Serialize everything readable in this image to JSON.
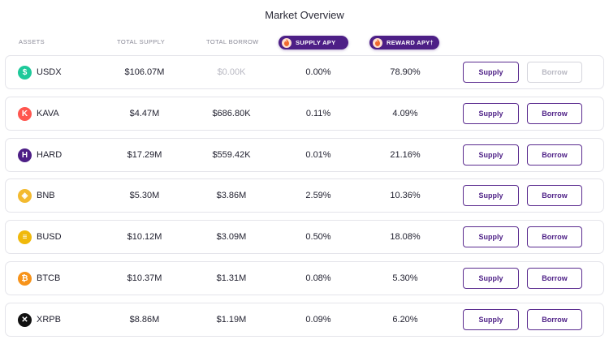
{
  "page": {
    "title": "Market Overview"
  },
  "headers": {
    "assets": "ASSETS",
    "total_supply": "TOTAL SUPPLY",
    "total_borrow": "TOTAL BORROW",
    "supply_apy": "SUPPLY APY",
    "reward_apy": "REWARD APY†"
  },
  "colors": {
    "accent": "#4d1f86",
    "pill_icon": "flame-icon"
  },
  "rows": [
    {
      "symbol": "USDX",
      "icon": "usdx-icon",
      "icon_color": "#1ec99a",
      "glyph": "$",
      "total_supply": "$106.07M",
      "total_borrow": "$0.00K",
      "borrow_muted": true,
      "supply_apy": "0.00%",
      "reward_apy": "78.90%",
      "supply_label": "Supply",
      "borrow_label": "Borrow",
      "borrow_disabled": true
    },
    {
      "symbol": "KAVA",
      "icon": "kava-icon",
      "icon_color": "#ff564f",
      "glyph": "K",
      "total_supply": "$4.47M",
      "total_borrow": "$686.80K",
      "borrow_muted": false,
      "supply_apy": "0.11%",
      "reward_apy": "4.09%",
      "supply_label": "Supply",
      "borrow_label": "Borrow",
      "borrow_disabled": false
    },
    {
      "symbol": "HARD",
      "icon": "hard-icon",
      "icon_color": "#4d1f86",
      "glyph": "H",
      "total_supply": "$17.29M",
      "total_borrow": "$559.42K",
      "borrow_muted": false,
      "supply_apy": "0.01%",
      "reward_apy": "21.16%",
      "supply_label": "Supply",
      "borrow_label": "Borrow",
      "borrow_disabled": false
    },
    {
      "symbol": "BNB",
      "icon": "bnb-icon",
      "icon_color": "#f3ba2f",
      "glyph": "◈",
      "total_supply": "$5.30M",
      "total_borrow": "$3.86M",
      "borrow_muted": false,
      "supply_apy": "2.59%",
      "reward_apy": "10.36%",
      "supply_label": "Supply",
      "borrow_label": "Borrow",
      "borrow_disabled": false
    },
    {
      "symbol": "BUSD",
      "icon": "busd-icon",
      "icon_color": "#f0b90b",
      "glyph": "≡",
      "total_supply": "$10.12M",
      "total_borrow": "$3.09M",
      "borrow_muted": false,
      "supply_apy": "0.50%",
      "reward_apy": "18.08%",
      "supply_label": "Supply",
      "borrow_label": "Borrow",
      "borrow_disabled": false
    },
    {
      "symbol": "BTCB",
      "icon": "btcb-icon",
      "icon_color": "#f7931a",
      "glyph": "₿",
      "total_supply": "$10.37M",
      "total_borrow": "$1.31M",
      "borrow_muted": false,
      "supply_apy": "0.08%",
      "reward_apy": "5.30%",
      "supply_label": "Supply",
      "borrow_label": "Borrow",
      "borrow_disabled": false
    },
    {
      "symbol": "XRPB",
      "icon": "xrpb-icon",
      "icon_color": "#111111",
      "glyph": "✕",
      "total_supply": "$8.86M",
      "total_borrow": "$1.19M",
      "borrow_muted": false,
      "supply_apy": "0.09%",
      "reward_apy": "6.20%",
      "supply_label": "Supply",
      "borrow_label": "Borrow",
      "borrow_disabled": false
    }
  ]
}
